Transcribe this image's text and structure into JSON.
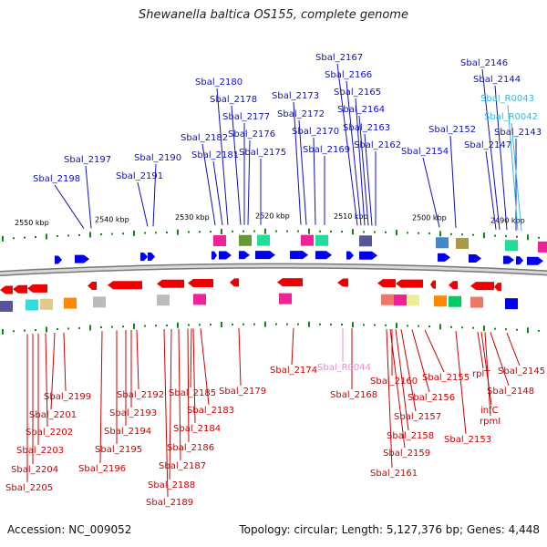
{
  "title": "Shewanella baltica OS155, complete genome",
  "footer": {
    "accession": "Accession: NC_009052",
    "stats": "Topology: circular; Length: 5,127,376 bp; Genes: 4,448"
  },
  "colors": {
    "forward_label": "#1010c0",
    "reverse_label": "#cc0000",
    "rna_forward_label": "#33bbdd",
    "rna_reverse_label": "#ee88cc",
    "forward_gene": "#0000ee",
    "reverse_gene": "#ee0000",
    "backbone": "#999999",
    "tick": "#118811"
  },
  "scale_labels": [
    "2550 kbp",
    "2540 kbp",
    "2530 kbp",
    "2520 kbp",
    "2510 kbp",
    "2500 kbp",
    "2490 kbp"
  ],
  "forward_labels": [
    "Sbal_2198",
    "Sbal_2197",
    "Sbal_2191",
    "Sbal_2190",
    "Sbal_2182",
    "Sbal_2181",
    "Sbal_2180",
    "Sbal_2178",
    "Sbal_2177",
    "Sbal_2176",
    "Sbal_2175",
    "Sbal_2173",
    "Sbal_2172",
    "Sbal_2170",
    "Sbal_2169",
    "Sbal_2167",
    "Sbal_2166",
    "Sbal_2165",
    "Sbal_2164",
    "Sbal_2163",
    "Sbal_2162",
    "Sbal_2154",
    "Sbal_2152",
    "Sbal_2147",
    "Sbal_2146",
    "Sbal_2144",
    "Sbal_2143"
  ],
  "forward_rna_labels": [
    "Sbal_R0043",
    "Sbal_R0042"
  ],
  "reverse_labels": [
    "Sbal_2199",
    "Sbal_2201",
    "Sbal_2202",
    "Sbal_2203",
    "Sbal_2204",
    "Sbal_2205",
    "Sbal_2192",
    "Sbal_2193",
    "Sbal_2194",
    "Sbal_2195",
    "Sbal_2196",
    "Sbal_2185",
    "Sbal_2183",
    "Sbal_2184",
    "Sbal_2186",
    "Sbal_2187",
    "Sbal_2188",
    "Sbal_2189",
    "Sbal_2179",
    "Sbal_2174",
    "Sbal_2168",
    "Sbal_2160",
    "Sbal_2156",
    "Sbal_2157",
    "Sbal_2158",
    "Sbal_2159",
    "Sbal_2161",
    "Sbal_2155",
    "Sbal_2153",
    "rplT",
    "infC",
    "rpmI",
    "Sbal_2148",
    "Sbal_2145"
  ],
  "reverse_rna_labels": [
    "Sbal_R0044"
  ]
}
